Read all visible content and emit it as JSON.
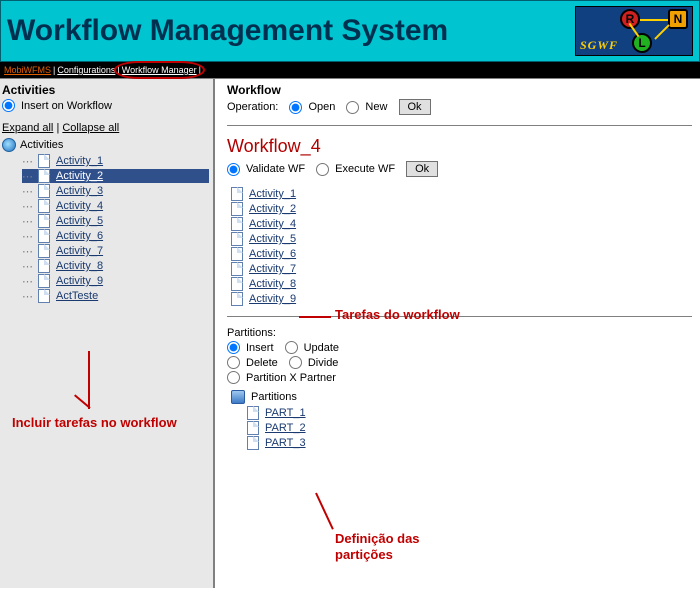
{
  "banner": {
    "title": "Workflow Management System",
    "logo_text": "SGWF",
    "logo_bg": "#104080",
    "logo_nodes": {
      "R": {
        "bg": "#d02020",
        "label": "R"
      },
      "L": {
        "bg": "#20b020",
        "label": "L"
      },
      "N": {
        "bg": "#f0a000",
        "label": "N"
      }
    }
  },
  "menu": {
    "items": [
      "MobiWFMS",
      "Configurations",
      "Workflow Manager"
    ]
  },
  "left": {
    "title": "Activities",
    "insert_label": "Insert on Workflow",
    "expand_label": "Expand all",
    "collapse_label": "Collapse all",
    "tree_root": "Activities",
    "activities": [
      "Activity_1",
      "Activity_2",
      "Activity_3",
      "Activity_4",
      "Activity_5",
      "Activity_6",
      "Activity_7",
      "Activity_8",
      "Activity_9",
      "ActTeste"
    ],
    "selected_index": 1,
    "annotation": "Incluir tarefas no workflow"
  },
  "right": {
    "title": "Workflow",
    "operation_label": "Operation:",
    "open_label": "Open",
    "new_label": "New",
    "ok_label": "Ok",
    "wf_name": "Workflow_4",
    "validate_label": "Validate WF",
    "execute_label": "Execute WF",
    "wf_activities": [
      "Activity_1",
      "Activity_2",
      "Activity_4",
      "Activity_5",
      "Activity_6",
      "Activity_7",
      "Activity_8",
      "Activity_9"
    ],
    "tasks_annotation": "Tarefas do workflow",
    "partitions_label": "Partitions:",
    "part_ops": {
      "insert": "Insert",
      "update": "Update",
      "delete": "Delete",
      "divide": "Divide",
      "pxp": "Partition X Partner"
    },
    "part_root": "Partitions",
    "partitions": [
      "PART_1",
      "PART_2",
      "PART_3"
    ],
    "partitions_annotation": "Definição das partições"
  },
  "colors": {
    "banner_bg": "#00c4d0",
    "accent_red": "#c00000",
    "link": "#1a3a70"
  }
}
